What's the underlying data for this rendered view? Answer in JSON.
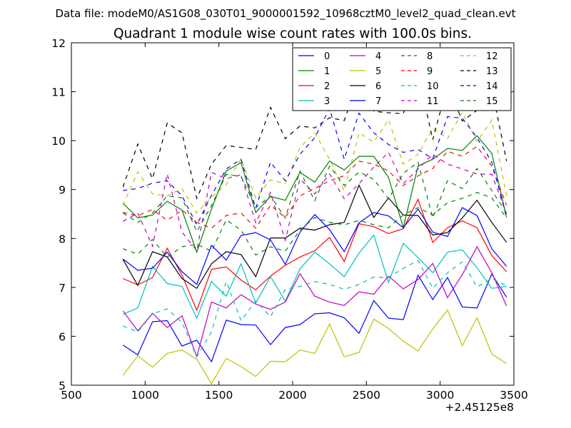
{
  "suptitle": "Data file: modeM0/AS1G08_030T01_9000001592_10968cztM0_level2_quad_clean.evt",
  "chart_data": {
    "type": "line",
    "title": "Quadrant 1 module wise count rates with 100.0s bins.",
    "xlabel": "",
    "ylabel": "",
    "xlim": [
      500,
      3500
    ],
    "ylim": [
      5,
      12
    ],
    "xticks": [
      "500",
      "1000",
      "1500",
      "2000",
      "2500",
      "3000",
      "3500"
    ],
    "yticks": [
      "5",
      "6",
      "7",
      "8",
      "9",
      "10",
      "11",
      "12"
    ],
    "x_offset_label": "+2.45125e8",
    "legend_position": "top-right",
    "x": [
      850,
      950,
      1050,
      1150,
      1250,
      1350,
      1450,
      1550,
      1650,
      1750,
      1850,
      1950,
      2050,
      2150,
      2250,
      2350,
      2450,
      2550,
      2650,
      2750,
      2850,
      2950,
      3050,
      3150,
      3250,
      3350,
      3450
    ],
    "series": [
      {
        "name": "0",
        "color": "#0000ff",
        "dash": "solid",
        "values": [
          5.82,
          5.62,
          6.3,
          6.32,
          5.8,
          5.92,
          5.48,
          6.33,
          6.24,
          6.23,
          5.83,
          6.18,
          6.24,
          6.46,
          6.48,
          6.38,
          6.06,
          6.73,
          6.37,
          6.34,
          7.25,
          6.75,
          7.2,
          6.6,
          6.58,
          7.27,
          6.8
        ]
      },
      {
        "name": "1",
        "color": "#008000",
        "dash": "solid",
        "values": [
          8.72,
          8.42,
          8.48,
          8.76,
          8.58,
          7.72,
          8.6,
          9.38,
          9.55,
          8.53,
          8.86,
          8.78,
          9.35,
          9.15,
          9.58,
          9.4,
          9.68,
          9.68,
          9.25,
          8.22,
          9.48,
          9.62,
          9.84,
          9.8,
          10.1,
          9.74,
          8.43
        ]
      },
      {
        "name": "2",
        "color": "#ff0000",
        "dash": "solid",
        "values": [
          7.18,
          7.05,
          7.2,
          7.8,
          7.25,
          6.53,
          7.37,
          7.42,
          7.15,
          6.95,
          7.23,
          7.45,
          7.62,
          7.75,
          8.02,
          7.53,
          8.3,
          8.24,
          8.1,
          8.2,
          8.8,
          7.92,
          8.22,
          8.36,
          8.22,
          7.65,
          7.32
        ]
      },
      {
        "name": "3",
        "color": "#00bfbf",
        "dash": "solid",
        "values": [
          6.45,
          6.58,
          7.43,
          7.08,
          7.02,
          6.37,
          7.12,
          6.82,
          7.48,
          6.68,
          7.22,
          6.72,
          7.38,
          7.72,
          7.48,
          7.22,
          7.7,
          8.07,
          7.1,
          7.9,
          7.61,
          7.3,
          7.72,
          7.77,
          7.4,
          6.98,
          7.02
        ]
      },
      {
        "name": "4",
        "color": "#bf00bf",
        "dash": "solid",
        "values": [
          6.52,
          6.11,
          6.47,
          6.18,
          6.42,
          5.58,
          6.7,
          6.58,
          6.85,
          6.66,
          6.55,
          6.7,
          7.28,
          6.82,
          6.7,
          6.63,
          6.91,
          6.86,
          7.23,
          6.97,
          7.16,
          7.49,
          6.79,
          7.26,
          7.83,
          7.3,
          6.62
        ]
      },
      {
        "name": "5",
        "color": "#bfbf00",
        "dash": "solid",
        "values": [
          5.2,
          5.6,
          5.37,
          5.65,
          5.72,
          5.53,
          5.03,
          5.55,
          5.38,
          5.18,
          5.49,
          5.48,
          5.72,
          5.65,
          6.25,
          5.58,
          5.67,
          6.35,
          6.16,
          5.9,
          5.7,
          6.15,
          6.54,
          5.81,
          6.38,
          5.64,
          5.44
        ]
      },
      {
        "name": "6",
        "color": "#000000",
        "dash": "solid",
        "values": [
          7.57,
          7.04,
          7.73,
          7.62,
          7.18,
          6.98,
          7.48,
          7.73,
          7.67,
          7.22,
          8.01,
          8.01,
          8.21,
          8.17,
          8.28,
          8.33,
          9.09,
          8.43,
          8.83,
          8.48,
          8.47,
          8.07,
          8.12,
          8.42,
          8.78,
          8.33,
          7.92
        ]
      },
      {
        "name": "7",
        "color": "#0000ff",
        "dash": "solid",
        "values": [
          7.58,
          7.35,
          7.39,
          7.72,
          7.32,
          7.06,
          7.86,
          7.56,
          8.06,
          8.12,
          7.97,
          7.47,
          8.13,
          8.49,
          8.18,
          7.73,
          8.32,
          8.53,
          8.46,
          8.22,
          8.6,
          8.13,
          8.04,
          8.63,
          8.47,
          7.79,
          7.43
        ]
      },
      {
        "name": "8",
        "color": "#008000",
        "dash": "dashed",
        "values": [
          7.79,
          7.68,
          7.98,
          7.62,
          7.83,
          7.88,
          7.74,
          8.38,
          8.17,
          7.66,
          7.83,
          7.74,
          8.17,
          8.43,
          8.33,
          8.28,
          8.37,
          8.28,
          8.22,
          8.48,
          8.63,
          8.48,
          8.73,
          8.82,
          8.94,
          8.83,
          8.42
        ]
      },
      {
        "name": "9",
        "color": "#ff0000",
        "dash": "dashed",
        "values": [
          8.53,
          8.47,
          8.59,
          8.37,
          8.58,
          8.33,
          8.21,
          8.47,
          8.52,
          8.21,
          8.68,
          8.43,
          8.87,
          9.02,
          9.18,
          9.28,
          9.58,
          9.52,
          9.38,
          9.08,
          9.28,
          9.43,
          9.78,
          9.68,
          9.88,
          9.48,
          8.68
        ]
      },
      {
        "name": "10",
        "color": "#00bfbf",
        "dash": "dashed",
        "values": [
          6.21,
          6.09,
          6.46,
          6.56,
          6.28,
          5.58,
          6.09,
          7.12,
          6.32,
          6.72,
          6.4,
          6.96,
          7.02,
          7.12,
          7.06,
          6.96,
          7.06,
          7.21,
          7.2,
          7.39,
          7.55,
          6.98,
          7.3,
          7.52,
          7.01,
          7.18,
          7.03
        ]
      },
      {
        "name": "11",
        "color": "#bf00bf",
        "dash": "dashed",
        "values": [
          8.35,
          8.52,
          7.84,
          9.32,
          8.13,
          7.75,
          9.35,
          9.22,
          9.3,
          8.32,
          8.94,
          7.96,
          9.22,
          8.91,
          9.32,
          8.81,
          9.12,
          9.46,
          9.76,
          9.12,
          9.42,
          9.72,
          9.52,
          9.42,
          9.32,
          9.31,
          8.51
        ]
      },
      {
        "name": "12",
        "color": "#bfbf00",
        "dash": "dashed",
        "values": [
          8.68,
          9.36,
          8.91,
          8.87,
          9.02,
          8.52,
          8.84,
          9.11,
          9.63,
          8.83,
          9.2,
          9.12,
          9.86,
          10.16,
          9.62,
          8.97,
          10.16,
          9.97,
          10.43,
          9.52,
          9.72,
          10.26,
          10.04,
          10.58,
          9.98,
          10.42,
          8.87
        ]
      },
      {
        "name": "13",
        "color": "#000000",
        "dash": "dashed",
        "values": [
          9.05,
          9.93,
          9.22,
          10.36,
          10.16,
          8.82,
          9.52,
          9.9,
          9.86,
          9.82,
          10.68,
          10.04,
          10.3,
          10.26,
          10.47,
          10.41,
          11.27,
          10.6,
          10.57,
          10.55,
          11.39,
          10.02,
          11.14,
          10.4,
          10.62,
          11.08,
          9.58
        ]
      },
      {
        "name": "14",
        "color": "#0000ff",
        "dash": "dashed",
        "values": [
          8.98,
          9.02,
          9.13,
          9.18,
          8.87,
          8.28,
          8.88,
          9.42,
          9.62,
          8.62,
          9.56,
          9.18,
          9.72,
          10.06,
          10.66,
          9.62,
          10.56,
          10.16,
          9.92,
          9.76,
          9.82,
          9.63,
          10.49,
          10.46,
          10.06,
          9.56,
          8.44
        ]
      },
      {
        "name": "15",
        "color": "#008000",
        "dash": "dashed",
        "values": [
          8.52,
          8.33,
          8.52,
          8.87,
          8.83,
          8.14,
          8.67,
          9.31,
          9.27,
          8.63,
          8.87,
          8.42,
          9.38,
          8.77,
          9.48,
          9.08,
          9.36,
          9.21,
          8.81,
          9.33,
          9.56,
          8.42,
          9.18,
          9.02,
          9.43,
          8.98,
          8.52
        ]
      }
    ]
  }
}
